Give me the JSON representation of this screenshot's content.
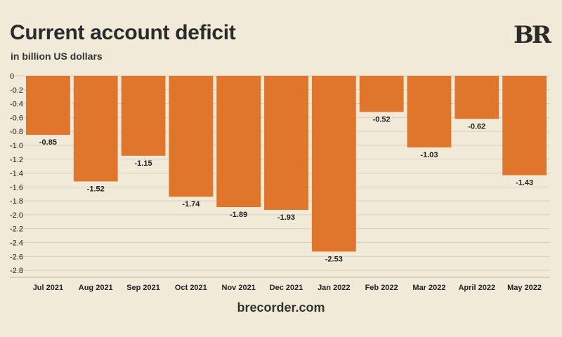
{
  "header": {
    "title": "Current account deficit",
    "subtitle": "in billion US dollars",
    "logo": "BR"
  },
  "footer": {
    "source": "brecorder.com"
  },
  "colors": {
    "bar": "#df762b",
    "grid": "#d8d0bd",
    "background": "#f2ead8",
    "text": "#222222"
  },
  "chart_data": {
    "type": "bar",
    "title": "Current account deficit",
    "subtitle": "in billion US dollars",
    "xlabel": "",
    "ylabel": "",
    "categories": [
      "Jul 2021",
      "Aug 2021",
      "Sep 2021",
      "Oct 2021",
      "Nov 2021",
      "Dec 2021",
      "Jan 2022",
      "Feb 2022",
      "Mar 2022",
      "April 2022",
      "May 2022"
    ],
    "values": [
      -0.85,
      -1.52,
      -1.15,
      -1.74,
      -1.89,
      -1.93,
      -2.53,
      -0.52,
      -1.03,
      -0.62,
      -1.43
    ],
    "value_labels": [
      "-0.85",
      "-1.52",
      "-1.15",
      "-1.74",
      "-1.89",
      "-1.93",
      "-2.53",
      "-0.52",
      "-1.03",
      "-0.62",
      "-1.43"
    ],
    "yticks": [
      0,
      -0.2,
      -0.4,
      -0.6,
      -0.8,
      -1.0,
      -1.2,
      -1.4,
      -1.6,
      -1.8,
      -2.0,
      -2.2,
      -2.4,
      -2.6,
      -2.8
    ],
    "ytick_labels": [
      "0",
      "-0.2",
      "-0.4",
      "-0.6",
      "-0.8",
      "-1.0",
      "-1.2",
      "-1.4",
      "-1.6",
      "-1.8",
      "-2.0",
      "-2.2",
      "-2.4",
      "-2.6",
      "-2.8"
    ],
    "ylim": [
      -2.9,
      0
    ],
    "grid": true,
    "legend": "none"
  }
}
